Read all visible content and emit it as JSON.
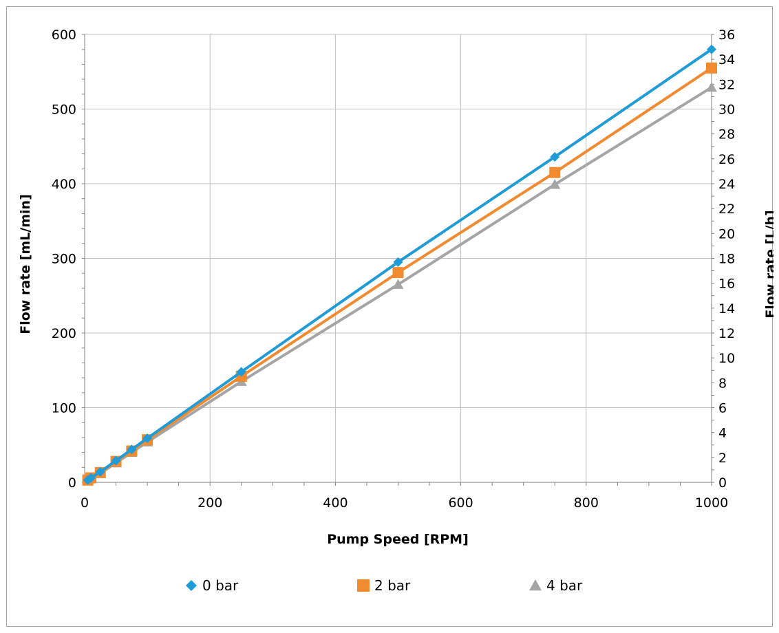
{
  "chart_data": {
    "type": "line",
    "title": "",
    "xlabel": "Pump Speed [RPM]",
    "ylabel": "Flow rate [mL/min]",
    "y2label": "Flow rate [L/h]",
    "xlim": [
      0,
      1000
    ],
    "ylim": [
      0,
      600
    ],
    "y2lim": [
      0,
      36
    ],
    "xticks": [
      0,
      200,
      400,
      600,
      800,
      1000
    ],
    "yticks": [
      0,
      100,
      200,
      300,
      400,
      500,
      600
    ],
    "y2ticks": [
      0,
      2,
      4,
      6,
      8,
      10,
      12,
      14,
      16,
      18,
      20,
      22,
      24,
      26,
      28,
      30,
      32,
      34,
      36
    ],
    "grid": true,
    "legend_position": "bottom",
    "x": [
      5,
      10,
      25,
      50,
      75,
      100,
      250,
      500,
      750,
      1000
    ],
    "series": [
      {
        "name": "0 bar",
        "marker": "diamond",
        "color": "#1f9bd7",
        "values": [
          3,
          6,
          14,
          29,
          44,
          59,
          148,
          295,
          436,
          580
        ]
      },
      {
        "name": "2 bar",
        "marker": "square",
        "color": "#f28a30",
        "values": [
          3,
          6,
          13,
          28,
          42,
          57,
          142,
          281,
          415,
          555
        ]
      },
      {
        "name": "4 bar",
        "marker": "triangle",
        "color": "#a5a5a5",
        "values": [
          2,
          5,
          12,
          26,
          40,
          54,
          135,
          265,
          399,
          529
        ]
      }
    ]
  }
}
